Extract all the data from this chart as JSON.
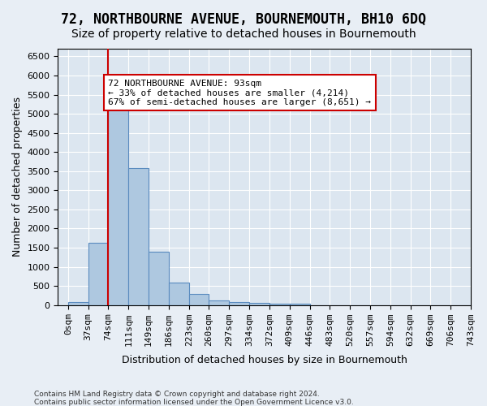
{
  "title": "72, NORTHBOURNE AVENUE, BOURNEMOUTH, BH10 6DQ",
  "subtitle": "Size of property relative to detached houses in Bournemouth",
  "xlabel": "Distribution of detached houses by size in Bournemouth",
  "ylabel": "Number of detached properties",
  "footer_line1": "Contains HM Land Registry data © Crown copyright and database right 2024.",
  "footer_line2": "Contains public sector information licensed under the Open Government Licence v3.0.",
  "bar_values": [
    70,
    1620,
    5100,
    3570,
    1400,
    580,
    300,
    130,
    80,
    55,
    45,
    45,
    0,
    0,
    0,
    0,
    0,
    0,
    0,
    0
  ],
  "bin_labels": [
    "0sqm",
    "37sqm",
    "74sqm",
    "111sqm",
    "149sqm",
    "186sqm",
    "223sqm",
    "260sqm",
    "297sqm",
    "334sqm",
    "372sqm",
    "409sqm",
    "446sqm",
    "483sqm",
    "520sqm",
    "557sqm",
    "594sqm",
    "632sqm",
    "669sqm",
    "706sqm",
    "743sqm"
  ],
  "bar_color": "#aec8e0",
  "bar_edge_color": "#5a8bbf",
  "vline_x": 2,
  "vline_color": "#cc0000",
  "annotation_text": "72 NORTHBOURNE AVENUE: 93sqm\n← 33% of detached houses are smaller (4,214)\n67% of semi-detached houses are larger (8,651) →",
  "annotation_box_color": "#ffffff",
  "annotation_box_edge_color": "#cc0000",
  "ylim": [
    0,
    6700
  ],
  "yticks": [
    0,
    500,
    1000,
    1500,
    2000,
    2500,
    3000,
    3500,
    4000,
    4500,
    5000,
    5500,
    6000,
    6500
  ],
  "bg_color": "#e8eef5",
  "plot_bg_color": "#dce6f0",
  "title_fontsize": 12,
  "subtitle_fontsize": 10,
  "axis_label_fontsize": 9,
  "tick_fontsize": 8
}
